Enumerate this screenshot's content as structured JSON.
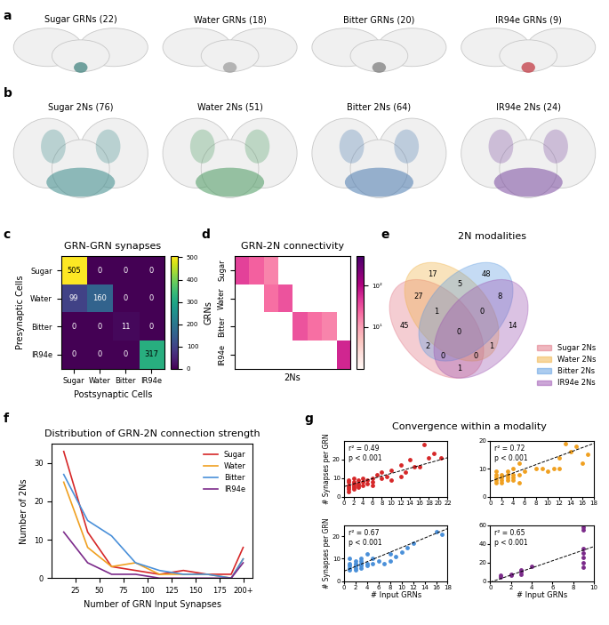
{
  "brain_panels": [
    {
      "panel": "a",
      "titles": [
        "Sugar GRNs (22)",
        "Water GRNs (18)",
        "Bitter GRNs (20)",
        "IR94e GRNs (9)"
      ],
      "colors": [
        "#3a7f7a",
        "#9a9a9a",
        "#777777",
        "#c0303a"
      ]
    },
    {
      "panel": "b",
      "titles": [
        "Sugar 2Ns (76)",
        "Water 2Ns (51)",
        "Bitter 2Ns (64)",
        "IR94e 2Ns (24)"
      ],
      "colors": [
        "#3a8a8a",
        "#4a9a60",
        "#4a7ab0",
        "#7a4aa0"
      ]
    }
  ],
  "group_titles": [
    {
      "panel": "g",
      "title": "Convergence within a modality"
    }
  ],
  "chart_data": [
    {
      "panel": "c",
      "type": "heatmap",
      "title": "GRN-GRN synapses",
      "xlabel": "Postsynaptic Cells",
      "ylabel": "Presynaptic Cells",
      "x_categories": [
        "Sugar",
        "Water",
        "Bitter",
        "IR94e"
      ],
      "y_categories": [
        "Sugar",
        "Water",
        "Bitter",
        "IR94e"
      ],
      "cells": [
        [
          505,
          0,
          0,
          0
        ],
        [
          99,
          160,
          0,
          0
        ],
        [
          0,
          0,
          11,
          0
        ],
        [
          0,
          0,
          0,
          317
        ]
      ],
      "data_labels": true,
      "colorbar": {
        "range": [
          0,
          505
        ],
        "ticks": [
          0,
          100,
          200,
          300,
          400,
          500
        ]
      }
    },
    {
      "panel": "d",
      "type": "heatmap",
      "title": "GRN-2N connectivity",
      "xlabel": "2Ns",
      "ylabel": "GRNs",
      "tick_labels": "y",
      "log": true,
      "y_categories": [
        "Sugar",
        "Water",
        "Bitter",
        "IR94e"
      ],
      "cells": [
        [
          40,
          25,
          15,
          null,
          null,
          null,
          null,
          null
        ],
        [
          null,
          null,
          20,
          30,
          null,
          null,
          null,
          null
        ],
        [
          null,
          null,
          null,
          null,
          30,
          20,
          15,
          null
        ],
        [
          null,
          null,
          null,
          null,
          null,
          null,
          null,
          60
        ]
      ],
      "colorbar": {
        "range": [
          1,
          500
        ],
        "ticks": [
          {
            "value": 10,
            "label": "10¹"
          },
          {
            "value": 100,
            "label": "10²"
          }
        ]
      }
    },
    {
      "panel": "e",
      "type": "venn",
      "title": "2N modalities",
      "legend": "lower right",
      "sets": [
        {
          "name": "Sugar 2Ns",
          "color": "#e07080"
        },
        {
          "name": "Water 2Ns",
          "color": "#f0b040"
        },
        {
          "name": "Bitter 2Ns",
          "color": "#5a9ae0"
        },
        {
          "name": "IR94e 2Ns",
          "color": "#9a50b0"
        }
      ],
      "regions": [
        {
          "sets": [
            "Sugar 2Ns"
          ],
          "value": 45
        },
        {
          "sets": [
            "Water 2Ns"
          ],
          "value": 17
        },
        {
          "sets": [
            "Bitter 2Ns"
          ],
          "value": 48
        },
        {
          "sets": [
            "IR94e 2Ns"
          ],
          "value": 14
        },
        {
          "sets": [
            "Sugar 2Ns",
            "Water 2Ns"
          ],
          "value": 27
        },
        {
          "sets": [
            "Sugar 2Ns",
            "Bitter 2Ns"
          ],
          "value": 2
        },
        {
          "sets": [
            "Sugar 2Ns",
            "IR94e 2Ns"
          ],
          "value": 1
        },
        {
          "sets": [
            "Water 2Ns",
            "Bitter 2Ns"
          ],
          "value": 5
        },
        {
          "sets": [
            "Water 2Ns",
            "IR94e 2Ns"
          ],
          "value": 1
        },
        {
          "sets": [
            "Bitter 2Ns",
            "IR94e 2Ns"
          ],
          "value": 8
        },
        {
          "sets": [
            "Sugar 2Ns",
            "Water 2Ns",
            "Bitter 2Ns"
          ],
          "value": 1
        },
        {
          "sets": [
            "Sugar 2Ns",
            "Water 2Ns",
            "IR94e 2Ns"
          ],
          "value": 0
        },
        {
          "sets": [
            "Sugar 2Ns",
            "Bitter 2Ns",
            "IR94e 2Ns"
          ],
          "value": 0
        },
        {
          "sets": [
            "Water 2Ns",
            "Bitter 2Ns",
            "IR94e 2Ns"
          ],
          "value": 0
        },
        {
          "sets": [
            "Sugar 2Ns",
            "Water 2Ns",
            "Bitter 2Ns",
            "IR94e 2Ns"
          ],
          "value": 0
        }
      ]
    },
    {
      "panel": "f",
      "type": "line",
      "title": "Distribution of GRN-2N connection strength",
      "xlabel": "Number of GRN Input Synapses",
      "ylabel": "Number of 2Ns",
      "legend": "upper right",
      "x": [
        12.5,
        37.5,
        62.5,
        87.5,
        112.5,
        137.5,
        162.5,
        187.5,
        200
      ],
      "xlim": [
        0,
        210
      ],
      "xticks": [
        25,
        50,
        75,
        100,
        125,
        150,
        175,
        {
          "value": 200,
          "label": "200+"
        }
      ],
      "ylim": [
        0,
        35
      ],
      "yticks": [
        0,
        10,
        20,
        30
      ],
      "series": [
        {
          "name": "Sugar",
          "color": "#d62728",
          "values": [
            33,
            12,
            3,
            2,
            1,
            2,
            1,
            1,
            8
          ]
        },
        {
          "name": "Water",
          "color": "#f0a020",
          "values": [
            25,
            8,
            3,
            4,
            1,
            1,
            1,
            0,
            5
          ]
        },
        {
          "name": "Bitter",
          "color": "#4a90d9",
          "values": [
            27,
            15,
            11,
            4,
            2,
            1,
            1,
            0,
            5
          ]
        },
        {
          "name": "IR94e",
          "color": "#7b2a8a",
          "values": [
            12,
            4,
            1,
            1,
            0,
            0,
            0,
            0,
            4
          ]
        }
      ]
    },
    {
      "panel": "g",
      "type": "scatter",
      "color": "#d62728",
      "marker": "o",
      "ylabel": "# Synapses per GRN",
      "annotations": [
        "r² = 0.49",
        "p < 0.001"
      ],
      "x": [
        1,
        1,
        1,
        1,
        1,
        1,
        2,
        2,
        2,
        2,
        2,
        2,
        3,
        3,
        3,
        3,
        4,
        4,
        4,
        5,
        5,
        6,
        6,
        6,
        7,
        8,
        8,
        9,
        10,
        10,
        12,
        12,
        13,
        14,
        15,
        16,
        17,
        18,
        19,
        20.5
      ],
      "values": [
        3,
        4,
        5,
        6,
        8,
        9,
        4,
        5,
        6,
        7,
        8,
        10,
        5,
        6,
        7,
        9,
        6,
        8,
        10,
        7,
        9,
        6,
        8,
        10,
        12,
        10,
        13,
        11,
        9,
        14,
        17,
        11,
        13,
        20,
        16,
        16,
        28,
        21,
        23,
        21
      ],
      "fit": {
        "slope": 0.7,
        "intercept": 5.5,
        "line_style": "dashed",
        "color": "#000000"
      },
      "xlim": [
        0,
        22
      ],
      "xticks": [
        0,
        2,
        4,
        6,
        8,
        10,
        12,
        14,
        16,
        18,
        20,
        22
      ],
      "ylim": [
        0,
        30
      ],
      "yticks": [
        0,
        10,
        20
      ]
    },
    {
      "type": "scatter",
      "color": "#f0a020",
      "marker": "o",
      "annotations": [
        "r² = 0.72",
        "p < 0.001"
      ],
      "x": [
        1,
        1,
        1,
        1,
        1,
        2,
        2,
        2,
        2,
        3,
        3,
        3,
        3,
        4,
        4,
        4,
        4,
        5,
        5,
        5,
        6,
        8,
        9,
        10,
        11,
        12,
        12,
        13,
        14,
        15,
        16,
        17
      ],
      "values": [
        5,
        6,
        7,
        8,
        9,
        5,
        6,
        7,
        8,
        6,
        7,
        8,
        9,
        6,
        7,
        8,
        10,
        5,
        8,
        12,
        9,
        10,
        10,
        9,
        10,
        10,
        14,
        19,
        16,
        18,
        12,
        15
      ],
      "fit": {
        "slope": 0.75,
        "intercept": 5.5,
        "line_style": "dashed",
        "color": "#000000"
      },
      "xlim": [
        0,
        18
      ],
      "xticks": [
        0,
        2,
        4,
        6,
        8,
        10,
        12,
        14,
        16,
        18
      ],
      "ylim": [
        0,
        20
      ],
      "yticks": [
        0,
        10,
        20
      ]
    },
    {
      "type": "scatter",
      "color": "#4a90d9",
      "marker": "o",
      "xlabel": "# Input GRNs",
      "ylabel": "# Synapses per GRN",
      "annotations": [
        "r² = 0.67",
        "p < 0.001"
      ],
      "x": [
        1,
        1,
        1,
        1,
        1,
        2,
        2,
        2,
        2,
        2,
        3,
        3,
        3,
        3,
        3,
        4,
        4,
        4,
        5,
        5,
        6,
        7,
        8,
        8,
        9,
        10,
        11,
        12,
        16,
        17
      ],
      "values": [
        5,
        6,
        7,
        8,
        10,
        5,
        6,
        7,
        8,
        9,
        6,
        7,
        8,
        9,
        10,
        7,
        8,
        12,
        8,
        10,
        9,
        8,
        12,
        9,
        11,
        13,
        15,
        17,
        22,
        21
      ],
      "fit": {
        "slope": 1.05,
        "intercept": 4.5,
        "line_style": "dashed",
        "color": "#000000"
      },
      "xlim": [
        0,
        18
      ],
      "xticks": [
        0,
        2,
        4,
        6,
        8,
        10,
        12,
        14,
        16,
        18
      ],
      "ylim": [
        0,
        25
      ],
      "yticks": [
        0,
        10,
        20
      ]
    },
    {
      "type": "scatter",
      "color": "#7b2a8a",
      "marker": "o",
      "xlabel": "# Input GRNs",
      "annotations": [
        "r² = 0.65",
        "p < 0.001"
      ],
      "x": [
        1,
        1,
        2,
        2,
        3,
        3,
        3,
        4,
        9,
        9,
        9,
        9,
        9,
        9,
        9
      ],
      "values": [
        5,
        6,
        6,
        7,
        7,
        10,
        12,
        16,
        15,
        20,
        25,
        30,
        35,
        55,
        58
      ],
      "fit": {
        "slope": 3.8,
        "intercept": -1,
        "line_style": "dashed",
        "color": "#000000"
      },
      "xlim": [
        0,
        10
      ],
      "xticks": [
        0,
        2,
        4,
        6,
        8,
        10
      ],
      "ylim": [
        0,
        60
      ],
      "yticks": [
        0,
        20,
        40,
        60
      ]
    }
  ]
}
